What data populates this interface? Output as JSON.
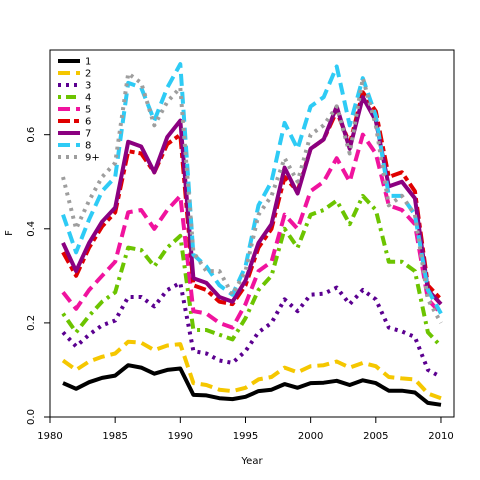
{
  "chart_data": {
    "type": "line",
    "title": "",
    "xlabel": "Year",
    "ylabel": "F",
    "xlim": [
      1980,
      2011
    ],
    "ylim": [
      0,
      0.78
    ],
    "x_ticks": [
      1980,
      1985,
      1990,
      1995,
      2000,
      2005,
      2010
    ],
    "y_ticks": [
      0.0,
      0.2,
      0.4,
      0.6
    ],
    "y_tick_labels": [
      "0.0",
      "0.2",
      "0.4",
      "0.6"
    ],
    "grid": false,
    "legend_position": "top-left",
    "x": [
      1981,
      1982,
      1983,
      1984,
      1985,
      1986,
      1987,
      1988,
      1989,
      1990,
      1991,
      1992,
      1993,
      1994,
      1995,
      1996,
      1997,
      1998,
      1999,
      2000,
      2001,
      2002,
      2003,
      2004,
      2005,
      2006,
      2007,
      2008,
      2009,
      2010
    ],
    "series": [
      {
        "name": "1",
        "color": "#000000",
        "dash": "none",
        "values": [
          0.072,
          0.06,
          0.074,
          0.083,
          0.088,
          0.11,
          0.105,
          0.092,
          0.1,
          0.103,
          0.047,
          0.046,
          0.04,
          0.038,
          0.043,
          0.055,
          0.058,
          0.07,
          0.062,
          0.072,
          0.073,
          0.077,
          0.068,
          0.078,
          0.072,
          0.056,
          0.056,
          0.052,
          0.03,
          0.026
        ]
      },
      {
        "name": "2",
        "color": "#F5C700",
        "dash": "long",
        "values": [
          0.12,
          0.1,
          0.118,
          0.128,
          0.135,
          0.16,
          0.158,
          0.142,
          0.152,
          0.155,
          0.072,
          0.068,
          0.058,
          0.055,
          0.062,
          0.08,
          0.085,
          0.105,
          0.095,
          0.108,
          0.11,
          0.118,
          0.105,
          0.115,
          0.108,
          0.085,
          0.082,
          0.08,
          0.05,
          0.04
        ]
      },
      {
        "name": "3",
        "color": "#5B0090",
        "dash": "dot",
        "values": [
          0.18,
          0.15,
          0.175,
          0.195,
          0.205,
          0.255,
          0.255,
          0.235,
          0.27,
          0.285,
          0.14,
          0.135,
          0.12,
          0.115,
          0.14,
          0.18,
          0.2,
          0.25,
          0.225,
          0.26,
          0.262,
          0.275,
          0.24,
          0.27,
          0.25,
          0.19,
          0.182,
          0.17,
          0.1,
          0.085
        ]
      },
      {
        "name": "4",
        "color": "#6CC400",
        "dash": "dotdash",
        "values": [
          0.22,
          0.18,
          0.215,
          0.245,
          0.265,
          0.36,
          0.355,
          0.32,
          0.36,
          0.385,
          0.185,
          0.185,
          0.175,
          0.165,
          0.21,
          0.27,
          0.3,
          0.4,
          0.36,
          0.43,
          0.44,
          0.46,
          0.41,
          0.47,
          0.44,
          0.33,
          0.33,
          0.31,
          0.18,
          0.15
        ]
      },
      {
        "name": "5",
        "color": "#F0139E",
        "dash": "long",
        "values": [
          0.265,
          0.23,
          0.27,
          0.3,
          0.33,
          0.435,
          0.44,
          0.4,
          0.44,
          0.47,
          0.225,
          0.22,
          0.2,
          0.19,
          0.24,
          0.31,
          0.33,
          0.43,
          0.4,
          0.48,
          0.5,
          0.55,
          0.5,
          0.6,
          0.56,
          0.45,
          0.44,
          0.41,
          0.25,
          0.22
        ]
      },
      {
        "name": "6",
        "color": "#E00000",
        "dash": "twodash",
        "values": [
          0.35,
          0.3,
          0.36,
          0.405,
          0.435,
          0.565,
          0.56,
          0.52,
          0.58,
          0.6,
          0.28,
          0.27,
          0.245,
          0.24,
          0.28,
          0.36,
          0.4,
          0.51,
          0.48,
          0.57,
          0.59,
          0.65,
          0.58,
          0.69,
          0.65,
          0.51,
          0.52,
          0.48,
          0.28,
          0.25
        ]
      },
      {
        "name": "7",
        "color": "#8B0080",
        "dash": "none",
        "values": [
          0.37,
          0.31,
          0.37,
          0.415,
          0.445,
          0.585,
          0.575,
          0.52,
          0.595,
          0.63,
          0.295,
          0.285,
          0.255,
          0.245,
          0.29,
          0.37,
          0.41,
          0.53,
          0.475,
          0.57,
          0.59,
          0.66,
          0.57,
          0.68,
          0.63,
          0.49,
          0.5,
          0.465,
          0.27,
          0.24
        ]
      },
      {
        "name": "8",
        "color": "#2ECBF5",
        "dash": "long",
        "values": [
          0.43,
          0.35,
          0.42,
          0.48,
          0.51,
          0.71,
          0.7,
          0.63,
          0.7,
          0.75,
          0.345,
          0.32,
          0.28,
          0.26,
          0.32,
          0.45,
          0.5,
          0.625,
          0.57,
          0.66,
          0.68,
          0.745,
          0.62,
          0.72,
          0.64,
          0.47,
          0.47,
          0.43,
          0.27,
          0.22
        ]
      },
      {
        "name": "9+",
        "color": "#9E9E9E",
        "dash": "dot",
        "values": [
          0.51,
          0.4,
          0.46,
          0.51,
          0.54,
          0.73,
          0.71,
          0.62,
          0.67,
          0.7,
          0.35,
          0.31,
          0.31,
          0.26,
          0.31,
          0.43,
          0.47,
          0.55,
          0.5,
          0.6,
          0.62,
          0.66,
          0.56,
          0.72,
          0.62,
          0.45,
          0.47,
          0.43,
          0.25,
          0.2
        ]
      }
    ]
  }
}
